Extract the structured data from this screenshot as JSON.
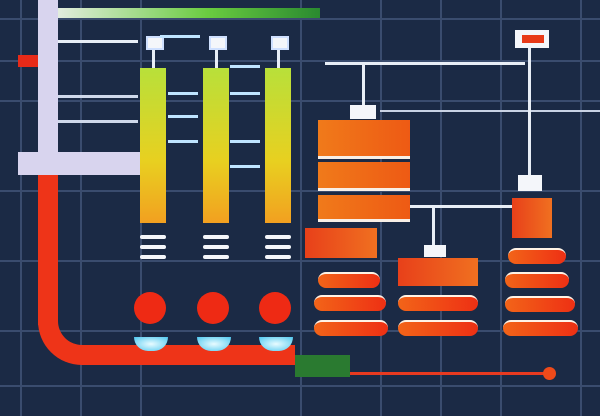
{
  "colors": {
    "background": "#1b2a45",
    "grid": "#3a4c6e",
    "pipe": "#ee3418",
    "panel": "#d8d4ee",
    "column_gradient": [
      "#b8e03a",
      "#e8d020",
      "#f2a020"
    ],
    "tank_orange": "#f07a1a",
    "tank_red": "#ee3014",
    "indicator_red": "#ee2a14",
    "bowl_cyan": "#4ec8f0"
  },
  "icons": [
    "gauge-column",
    "valve-ball",
    "tank-stack",
    "pipe"
  ]
}
